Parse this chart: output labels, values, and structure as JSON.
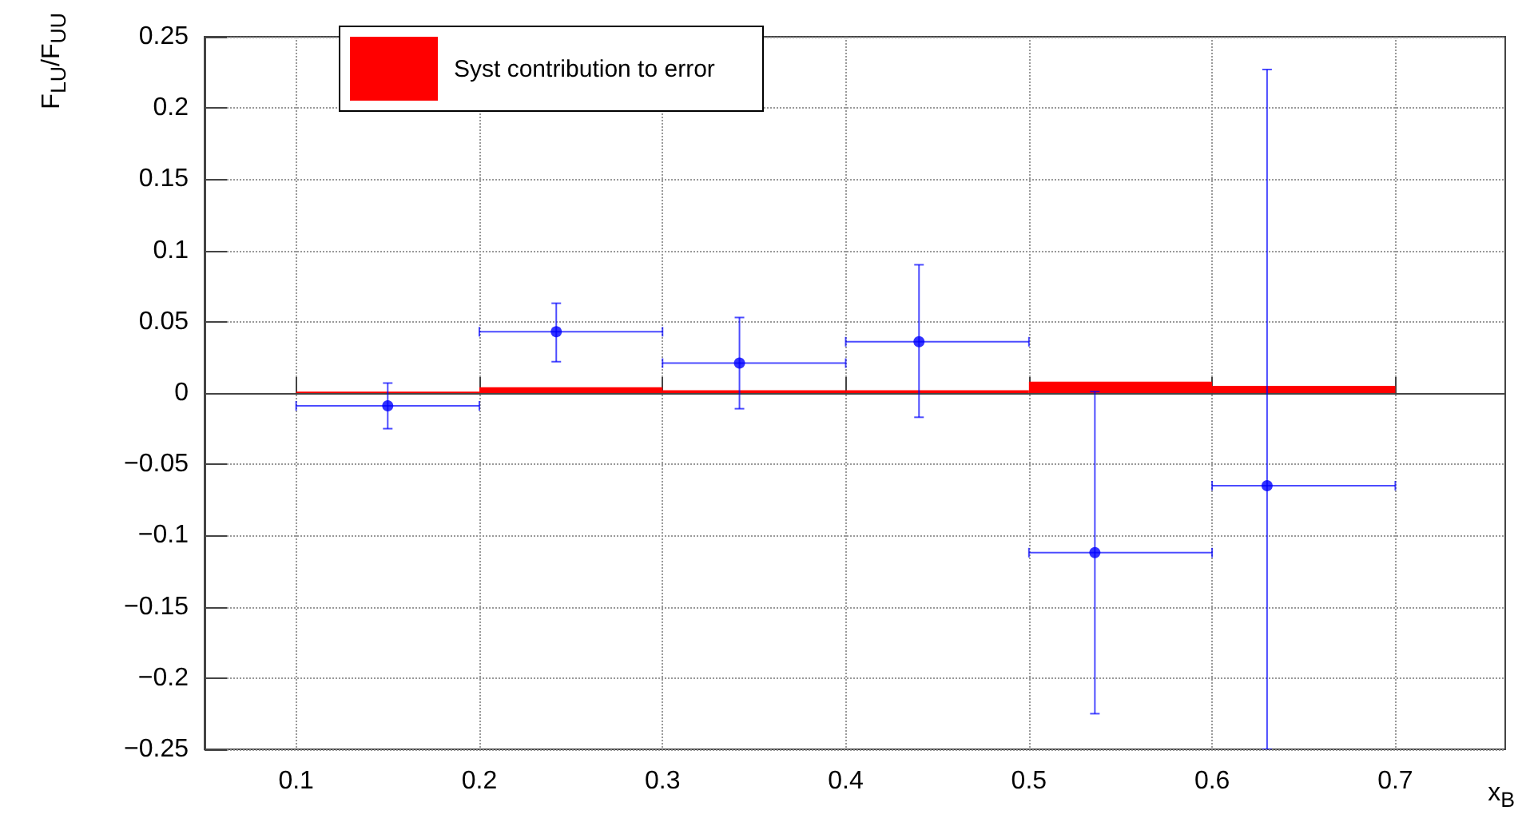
{
  "chart_data": {
    "type": "scatter",
    "xlabel": "x$_{B}$",
    "ylabel": "F$_{LU}$/F$_{UU}$",
    "x": [
      0.15,
      0.242,
      0.342,
      0.44,
      0.536,
      0.63
    ],
    "series": [
      {
        "type": "histogram",
        "name": "Syst contribution to error",
        "color": "#ff0000",
        "bins": [
          0.1,
          0.2,
          0.3,
          0.4,
          0.5,
          0.6,
          0.7
        ],
        "values": [
          0.001,
          0.004,
          0.002,
          0.002,
          0.008,
          0.005
        ]
      },
      {
        "type": "scatter",
        "color": "#0000ff",
        "values": [
          -0.009,
          0.043,
          0.021,
          0.036,
          -0.112,
          -0.065
        ],
        "errors": [
          [
            -0.025,
            0.007
          ],
          [
            0.022,
            0.063
          ],
          [
            -0.011,
            0.053
          ],
          [
            -0.017,
            0.09
          ],
          [
            -0.225,
            0.001
          ],
          [
            -0.25,
            0.227
          ]
        ],
        "xerrors": [
          [
            0.1,
            0.2
          ],
          [
            0.2,
            0.3
          ],
          [
            0.3,
            0.4
          ],
          [
            0.4,
            0.5
          ],
          [
            0.5,
            0.6
          ],
          [
            0.6,
            0.7
          ]
        ]
      }
    ],
    "xlim": [
      0.05,
      0.76
    ],
    "xticks": [
      0.1,
      0.2,
      0.3,
      0.4,
      0.5,
      0.6,
      0.7
    ],
    "ylim": [
      -0.25,
      0.25
    ],
    "yticks": [
      {
        "value": -0.25,
        "label": "−0.25"
      },
      {
        "value": -0.2,
        "label": "−0.2"
      },
      {
        "value": -0.15,
        "label": "−0.15"
      },
      {
        "value": -0.1,
        "label": "−0.1"
      },
      {
        "value": -0.05,
        "label": "−0.05"
      },
      0,
      0.05,
      0.1,
      0.15,
      0.2,
      0.25
    ],
    "grid": true,
    "legend": "top left",
    "marker": "circle"
  }
}
